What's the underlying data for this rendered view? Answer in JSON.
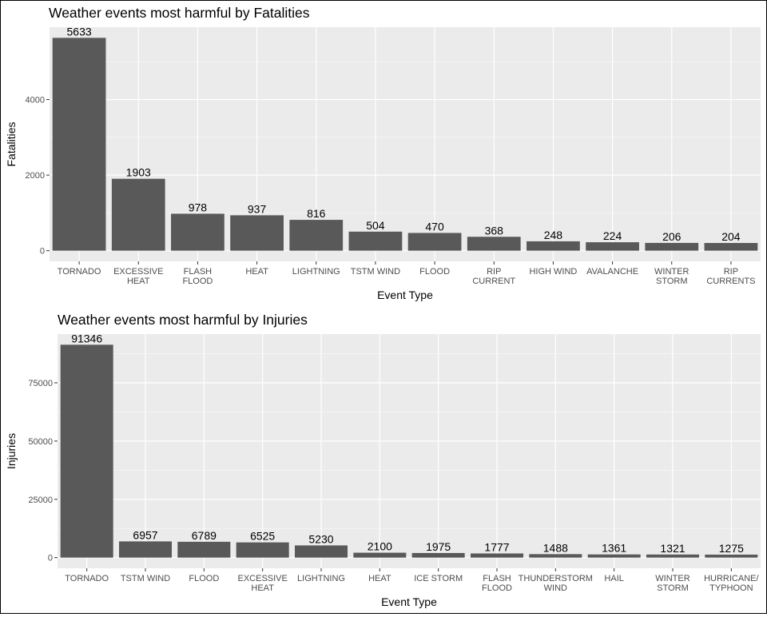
{
  "chart_data": [
    {
      "type": "bar",
      "title": "Weather events most harmful by Fatalities",
      "xlabel": "Event Type",
      "ylabel": "Fatalities",
      "categories": [
        [
          "TORNADO"
        ],
        [
          "EXCESSIVE",
          "HEAT"
        ],
        [
          "FLASH",
          "FLOOD"
        ],
        [
          "HEAT"
        ],
        [
          "LIGHTNING"
        ],
        [
          "TSTM WIND"
        ],
        [
          "FLOOD"
        ],
        [
          "RIP",
          "CURRENT"
        ],
        [
          "HIGH WIND"
        ],
        [
          "AVALANCHE"
        ],
        [
          "WINTER",
          "STORM"
        ],
        [
          "RIP",
          "CURRENTS"
        ]
      ],
      "values": [
        5633,
        1903,
        978,
        937,
        816,
        504,
        470,
        368,
        248,
        224,
        206,
        204
      ],
      "value_labels": [
        "5633",
        "1903",
        "978",
        "937",
        "816",
        "504",
        "470",
        "368",
        "248",
        "224",
        "206",
        "204"
      ],
      "yticks": [
        0,
        2000,
        4000
      ],
      "ytick_labels": [
        "0",
        "2000",
        "4000"
      ],
      "ylim": [
        -282,
        5915
      ],
      "grid": true,
      "bar_color": "#595959",
      "panel_color": "#ebebeb"
    },
    {
      "type": "bar",
      "title": "Weather events most harmful by Injuries",
      "xlabel": "Event Type",
      "ylabel": "Injuries",
      "categories": [
        [
          "TORNADO"
        ],
        [
          "TSTM WIND"
        ],
        [
          "FLOOD"
        ],
        [
          "EXCESSIVE",
          "HEAT"
        ],
        [
          "LIGHTNING"
        ],
        [
          "HEAT"
        ],
        [
          "ICE STORM"
        ],
        [
          "FLASH",
          "FLOOD"
        ],
        [
          "THUNDERSTORM",
          "WIND"
        ],
        [
          "HAIL"
        ],
        [
          "WINTER",
          "STORM"
        ],
        [
          "HURRICANE/",
          "TYPHOON"
        ]
      ],
      "values": [
        91346,
        6957,
        6789,
        6525,
        5230,
        2100,
        1975,
        1777,
        1488,
        1361,
        1321,
        1275
      ],
      "value_labels": [
        "91346",
        "6957",
        "6789",
        "6525",
        "5230",
        "2100",
        "1975",
        "1777",
        "1488",
        "1361",
        "1321",
        "1275"
      ],
      "yticks": [
        0,
        25000,
        50000,
        75000
      ],
      "ytick_labels": [
        "0",
        "25000",
        "50000",
        "75000"
      ],
      "ylim": [
        -4567,
        95913
      ],
      "grid": true,
      "bar_color": "#595959",
      "panel_color": "#ebebeb"
    }
  ]
}
